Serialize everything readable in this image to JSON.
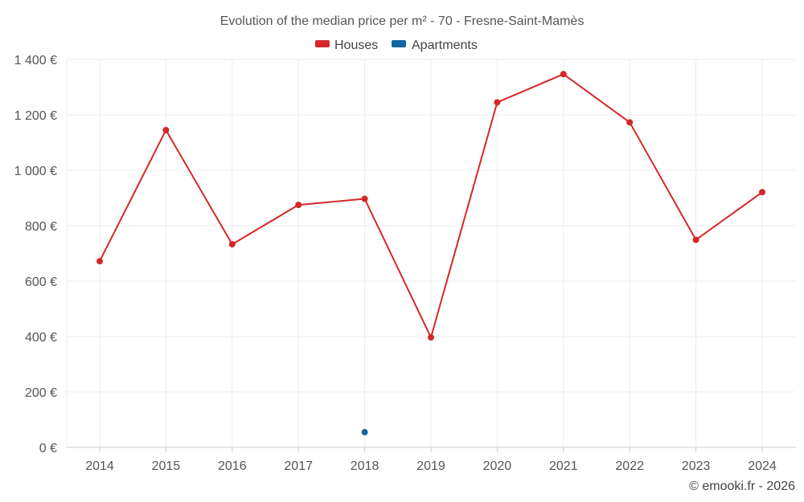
{
  "chart_data": {
    "type": "line",
    "title": "Evolution of the median price per m² - 70 - Fresne-Saint-Mamès",
    "categories": [
      "2014",
      "2015",
      "2016",
      "2017",
      "2018",
      "2019",
      "2020",
      "2021",
      "2022",
      "2023",
      "2024"
    ],
    "series": [
      {
        "name": "Houses",
        "color": "#d62728",
        "values": [
          672,
          1145,
          733,
          875,
          897,
          397,
          1245,
          1347,
          1173,
          749,
          921
        ]
      },
      {
        "name": "Apartments",
        "color": "#1565a3",
        "values": [
          null,
          null,
          null,
          null,
          55,
          null,
          null,
          null,
          null,
          null,
          null
        ]
      }
    ],
    "yticks": [
      "0 €",
      "200 €",
      "400 €",
      "600 €",
      "800 €",
      "1 000 €",
      "1 200 €",
      "1 400 €"
    ],
    "ylim": [
      0,
      1400
    ],
    "grid": true,
    "legend": "top-center"
  },
  "credit": "© emooki.fr - 2026"
}
